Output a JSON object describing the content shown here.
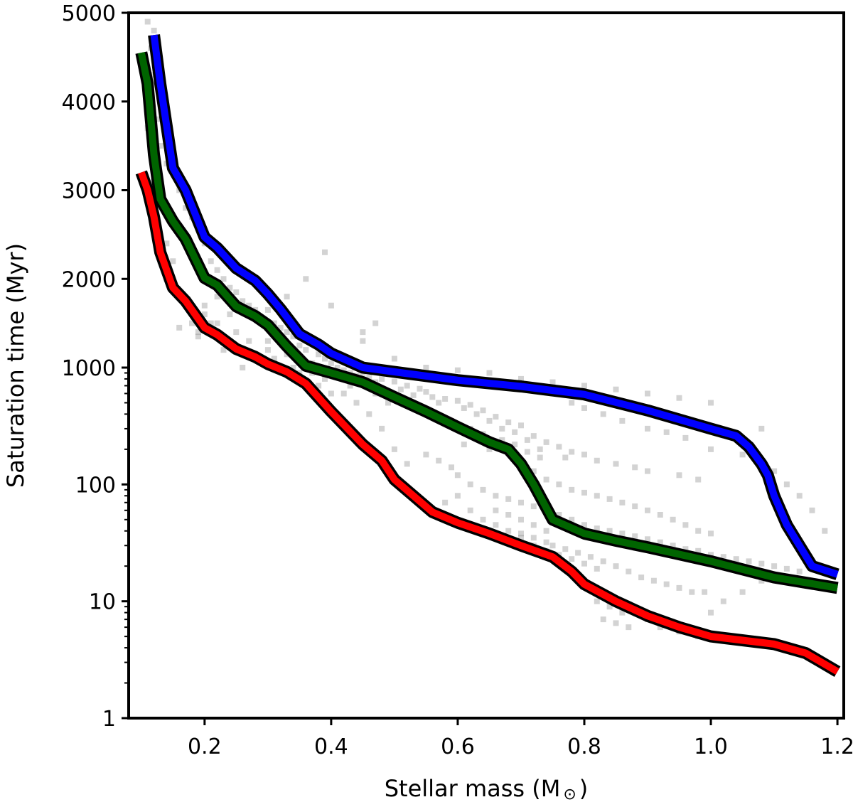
{
  "chart_data": {
    "type": "line",
    "title": "",
    "xlabel": "Stellar mass (M",
    "xlabel_suffix": ")",
    "xlabel_symbol": "⊙",
    "ylabel": "Saturation time (Myr)",
    "xlim": [
      0.08,
      1.21
    ],
    "x_ticks": [
      0.2,
      0.4,
      0.6,
      0.8,
      1.0,
      1.2
    ],
    "x_tick_labels": [
      "0.2",
      "0.4",
      "0.6",
      "0.8",
      "1.0",
      "1.2"
    ],
    "y_axis_segments": [
      {
        "range": [
          1,
          1000
        ],
        "scale": "log"
      },
      {
        "range": [
          1000,
          5000
        ],
        "scale": "linear"
      }
    ],
    "y_ticks": [
      1,
      10,
      100,
      1000,
      2000,
      3000,
      4000,
      5000
    ],
    "y_tick_labels": [
      "1",
      "10",
      "100",
      "1000",
      "2000",
      "3000",
      "4000",
      "5000"
    ],
    "grid": false,
    "series": [
      {
        "name": "blue",
        "color": "#0000ff",
        "x": [
          0.12,
          0.13,
          0.15,
          0.17,
          0.2,
          0.22,
          0.25,
          0.28,
          0.3,
          0.32,
          0.35,
          0.38,
          0.4,
          0.45,
          0.5,
          0.6,
          0.7,
          0.8,
          0.9,
          1.0,
          1.04,
          1.06,
          1.08,
          1.09,
          1.1,
          1.12,
          1.14,
          1.16,
          1.2
        ],
        "y": [
          4750,
          4200,
          3250,
          3000,
          2470,
          2350,
          2120,
          1980,
          1830,
          1660,
          1380,
          1260,
          1160,
          1000,
          920,
          780,
          690,
          590,
          430,
          300,
          260,
          210,
          150,
          120,
          80,
          45,
          30,
          20,
          17
        ]
      },
      {
        "name": "green",
        "color": "#006400",
        "x": [
          0.1,
          0.11,
          0.12,
          0.13,
          0.15,
          0.17,
          0.2,
          0.22,
          0.25,
          0.28,
          0.3,
          0.33,
          0.36,
          0.4,
          0.45,
          0.5,
          0.55,
          0.6,
          0.65,
          0.68,
          0.7,
          0.72,
          0.75,
          0.8,
          0.85,
          0.9,
          1.0,
          1.1,
          1.2
        ],
        "y": [
          4550,
          4200,
          3400,
          2900,
          2650,
          2450,
          2010,
          1930,
          1690,
          1580,
          1480,
          1240,
          1020,
          900,
          750,
          560,
          420,
          310,
          230,
          200,
          150,
          100,
          50,
          38,
          33,
          29,
          22,
          16,
          13
        ]
      },
      {
        "name": "red",
        "color": "#ff0000",
        "x": [
          0.1,
          0.11,
          0.12,
          0.13,
          0.15,
          0.17,
          0.2,
          0.22,
          0.25,
          0.28,
          0.3,
          0.33,
          0.36,
          0.4,
          0.45,
          0.48,
          0.5,
          0.53,
          0.56,
          0.6,
          0.65,
          0.7,
          0.75,
          0.78,
          0.8,
          0.85,
          0.9,
          0.95,
          1.0,
          1.1,
          1.15,
          1.2
        ],
        "y": [
          3200,
          3000,
          2700,
          2300,
          1900,
          1750,
          1450,
          1370,
          1210,
          1120,
          1040,
          920,
          730,
          420,
          220,
          160,
          110,
          80,
          58,
          47,
          38,
          30,
          24,
          18,
          14,
          10,
          7.5,
          6,
          5,
          4.3,
          3.6,
          2.5
        ]
      }
    ],
    "scatter_cloud": {
      "color": "#808080",
      "note": "background model stars",
      "points": [
        [
          0.11,
          4900
        ],
        [
          0.12,
          4800
        ],
        [
          0.115,
          4600
        ],
        [
          0.12,
          4300
        ],
        [
          0.13,
          4100
        ],
        [
          0.125,
          3800
        ],
        [
          0.11,
          3700
        ],
        [
          0.13,
          3500
        ],
        [
          0.14,
          3300
        ],
        [
          0.12,
          3100
        ],
        [
          0.13,
          2900
        ],
        [
          0.15,
          3200
        ],
        [
          0.16,
          3000
        ],
        [
          0.17,
          2800
        ],
        [
          0.15,
          2700
        ],
        [
          0.16,
          2600
        ],
        [
          0.18,
          2700
        ],
        [
          0.17,
          2500
        ],
        [
          0.19,
          2600
        ],
        [
          0.14,
          2400
        ],
        [
          0.15,
          2200
        ],
        [
          0.18,
          2300
        ],
        [
          0.2,
          2400
        ],
        [
          0.21,
          2200
        ],
        [
          0.22,
          2100
        ],
        [
          0.2,
          2000
        ],
        [
          0.23,
          2000
        ],
        [
          0.24,
          1900
        ],
        [
          0.22,
          1800
        ],
        [
          0.25,
          1850
        ],
        [
          0.26,
          1750
        ],
        [
          0.27,
          1700
        ],
        [
          0.28,
          1650
        ],
        [
          0.24,
          1600
        ],
        [
          0.3,
          1650
        ],
        [
          0.29,
          1500
        ],
        [
          0.31,
          1500
        ],
        [
          0.32,
          1450
        ],
        [
          0.33,
          1400
        ],
        [
          0.3,
          1300
        ],
        [
          0.34,
          1350
        ],
        [
          0.35,
          1250
        ],
        [
          0.36,
          1200
        ],
        [
          0.33,
          1150
        ],
        [
          0.38,
          1150
        ],
        [
          0.39,
          1100
        ],
        [
          0.37,
          1050
        ],
        [
          0.4,
          1050
        ],
        [
          0.41,
          1000
        ],
        [
          0.39,
          950
        ],
        [
          0.42,
          950
        ],
        [
          0.43,
          900
        ],
        [
          0.45,
          900
        ],
        [
          0.44,
          850
        ],
        [
          0.46,
          820
        ],
        [
          0.48,
          800
        ],
        [
          0.47,
          750
        ],
        [
          0.5,
          760
        ],
        [
          0.52,
          700
        ],
        [
          0.51,
          650
        ],
        [
          0.54,
          660
        ],
        [
          0.55,
          620
        ],
        [
          0.53,
          580
        ],
        [
          0.56,
          560
        ],
        [
          0.58,
          540
        ],
        [
          0.57,
          500
        ],
        [
          0.6,
          520
        ],
        [
          0.62,
          480
        ],
        [
          0.61,
          450
        ],
        [
          0.64,
          430
        ],
        [
          0.63,
          400
        ],
        [
          0.66,
          380
        ],
        [
          0.65,
          350
        ],
        [
          0.68,
          340
        ],
        [
          0.67,
          300
        ],
        [
          0.7,
          320
        ],
        [
          0.69,
          280
        ],
        [
          0.72,
          260
        ],
        [
          0.71,
          240
        ],
        [
          0.74,
          230
        ],
        [
          0.73,
          200
        ],
        [
          0.76,
          210
        ],
        [
          0.78,
          190
        ],
        [
          0.77,
          170
        ],
        [
          0.8,
          180
        ],
        [
          0.82,
          160
        ],
        [
          0.85,
          150
        ],
        [
          0.88,
          140
        ],
        [
          0.9,
          130
        ],
        [
          0.95,
          120
        ],
        [
          0.98,
          110
        ],
        [
          0.6,
          120
        ],
        [
          0.62,
          100
        ],
        [
          0.64,
          90
        ],
        [
          0.66,
          80
        ],
        [
          0.68,
          75
        ],
        [
          0.7,
          70
        ],
        [
          0.72,
          65
        ],
        [
          0.74,
          60
        ],
        [
          0.76,
          55
        ],
        [
          0.78,
          50
        ],
        [
          0.8,
          45
        ],
        [
          0.82,
          42
        ],
        [
          0.84,
          40
        ],
        [
          0.86,
          38
        ],
        [
          0.88,
          36
        ],
        [
          0.9,
          34
        ],
        [
          0.92,
          32
        ],
        [
          0.94,
          30
        ],
        [
          0.96,
          28
        ],
        [
          0.98,
          27
        ],
        [
          1.0,
          25
        ],
        [
          1.02,
          24
        ],
        [
          1.04,
          23
        ],
        [
          1.06,
          22
        ],
        [
          1.08,
          21
        ],
        [
          1.1,
          20
        ],
        [
          1.12,
          19
        ],
        [
          1.14,
          18
        ],
        [
          0.66,
          60
        ],
        [
          0.68,
          55
        ],
        [
          0.7,
          50
        ],
        [
          0.72,
          45
        ],
        [
          0.74,
          40
        ],
        [
          0.7,
          38
        ],
        [
          0.72,
          35
        ],
        [
          0.74,
          32
        ],
        [
          0.75,
          30
        ],
        [
          0.77,
          28
        ],
        [
          0.79,
          26
        ],
        [
          0.81,
          24
        ],
        [
          0.83,
          22
        ],
        [
          0.85,
          20
        ],
        [
          0.87,
          18
        ],
        [
          0.89,
          16
        ],
        [
          0.91,
          15
        ],
        [
          0.93,
          14
        ],
        [
          0.95,
          13
        ],
        [
          0.97,
          12
        ],
        [
          0.99,
          12
        ],
        [
          0.82,
          10
        ],
        [
          0.84,
          9
        ],
        [
          0.86,
          8
        ],
        [
          0.83,
          7
        ],
        [
          0.85,
          6.5
        ],
        [
          0.87,
          6
        ],
        [
          0.9,
          7
        ],
        [
          0.92,
          6
        ],
        [
          0.95,
          5.5
        ],
        [
          0.98,
          5
        ],
        [
          1.0,
          8
        ],
        [
          1.02,
          10
        ],
        [
          1.05,
          12
        ],
        [
          1.08,
          15
        ],
        [
          0.55,
          180
        ],
        [
          0.57,
          160
        ],
        [
          0.59,
          140
        ],
        [
          0.61,
          220
        ],
        [
          0.63,
          250
        ],
        [
          0.65,
          200
        ],
        [
          0.75,
          600
        ],
        [
          0.78,
          500
        ],
        [
          0.8,
          450
        ],
        [
          0.83,
          400
        ],
        [
          0.86,
          350
        ],
        [
          0.9,
          300
        ],
        [
          0.93,
          280
        ],
        [
          0.96,
          250
        ],
        [
          1.0,
          200
        ],
        [
          1.05,
          180
        ],
        [
          0.5,
          200
        ],
        [
          0.52,
          150
        ],
        [
          0.48,
          300
        ],
        [
          0.46,
          400
        ],
        [
          0.44,
          500
        ],
        [
          0.42,
          600
        ],
        [
          0.35,
          900
        ],
        [
          0.38,
          700
        ],
        [
          0.4,
          600
        ],
        [
          0.32,
          1000
        ],
        [
          0.28,
          1100
        ],
        [
          0.26,
          1000
        ],
        [
          0.24,
          1300
        ],
        [
          0.21,
          1500
        ],
        [
          0.19,
          1400
        ],
        [
          0.2,
          1600
        ],
        [
          0.23,
          1200
        ],
        [
          0.25,
          1400
        ],
        [
          0.3,
          1200
        ],
        [
          0.36,
          2000
        ],
        [
          0.4,
          1700
        ],
        [
          0.45,
          1300
        ],
        [
          0.5,
          1100
        ],
        [
          0.55,
          1000
        ],
        [
          0.6,
          950
        ],
        [
          0.65,
          900
        ],
        [
          0.7,
          800
        ],
        [
          0.75,
          750
        ],
        [
          0.8,
          700
        ],
        [
          0.85,
          650
        ],
        [
          0.9,
          600
        ],
        [
          0.95,
          550
        ],
        [
          1.0,
          500
        ],
        [
          0.7,
          150
        ],
        [
          0.72,
          130
        ],
        [
          0.74,
          110
        ],
        [
          0.76,
          100
        ],
        [
          0.78,
          90
        ],
        [
          0.8,
          85
        ],
        [
          0.82,
          80
        ],
        [
          0.84,
          75
        ],
        [
          0.86,
          70
        ],
        [
          0.88,
          65
        ],
        [
          0.9,
          60
        ],
        [
          0.92,
          55
        ],
        [
          0.94,
          50
        ],
        [
          0.96,
          45
        ],
        [
          0.98,
          40
        ],
        [
          1.0,
          38
        ],
        [
          0.6,
          80
        ],
        [
          0.58,
          70
        ],
        [
          0.56,
          60
        ],
        [
          0.62,
          60
        ],
        [
          0.64,
          50
        ],
        [
          0.66,
          45
        ],
        [
          0.68,
          40
        ],
        [
          0.7,
          35
        ],
        [
          0.72,
          30
        ],
        [
          0.74,
          27
        ],
        [
          0.76,
          25
        ],
        [
          0.78,
          23
        ],
        [
          0.8,
          21
        ],
        [
          0.82,
          19
        ],
        [
          1.1,
          130
        ],
        [
          1.08,
          300
        ],
        [
          1.12,
          100
        ],
        [
          1.14,
          80
        ],
        [
          1.16,
          60
        ],
        [
          1.18,
          40
        ],
        [
          0.19,
          1350
        ],
        [
          0.18,
          1500
        ],
        [
          0.2,
          1700
        ],
        [
          0.22,
          1500
        ],
        [
          0.27,
          1300
        ],
        [
          0.31,
          1100
        ],
        [
          0.34,
          1000
        ],
        [
          0.37,
          900
        ],
        [
          0.39,
          800
        ],
        [
          0.43,
          700
        ],
        [
          0.47,
          600
        ],
        [
          0.49,
          500
        ],
        [
          0.53,
          450
        ],
        [
          0.56,
          400
        ],
        [
          0.59,
          350
        ],
        [
          0.62,
          300
        ],
        [
          0.64,
          270
        ],
        [
          0.67,
          240
        ],
        [
          0.69,
          220
        ],
        [
          0.71,
          190
        ],
        [
          0.73,
          170
        ],
        [
          0.45,
          1400
        ],
        [
          0.47,
          1500
        ],
        [
          0.39,
          2300
        ],
        [
          0.33,
          1800
        ],
        [
          0.29,
          1900
        ],
        [
          0.16,
          1450
        ],
        [
          0.14,
          2000
        ],
        [
          0.13,
          2200
        ],
        [
          0.12,
          3300
        ]
      ]
    }
  }
}
